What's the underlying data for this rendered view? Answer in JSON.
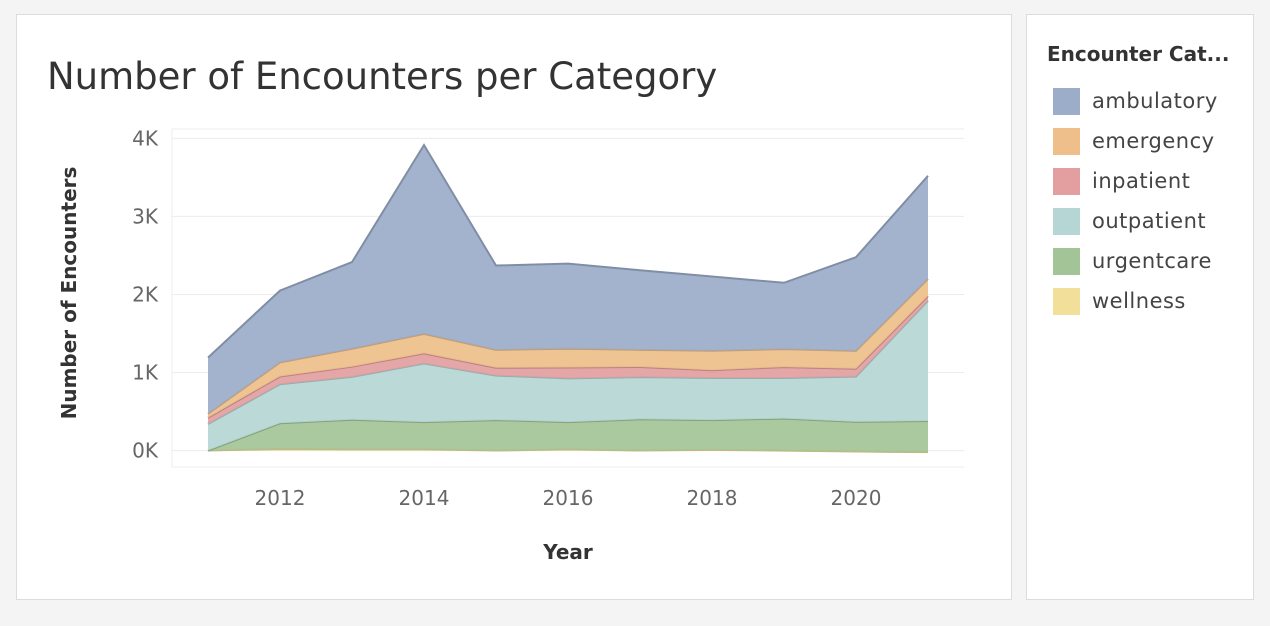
{
  "chart_data": {
    "type": "area",
    "title": "Number of Encounters per Category",
    "xlabel": "Year",
    "ylabel": "Number of Encounters",
    "x": [
      2011,
      2012,
      2013,
      2014,
      2015,
      2016,
      2017,
      2018,
      2019,
      2020,
      2021
    ],
    "x_ticks": [
      2012,
      2014,
      2016,
      2018,
      2020
    ],
    "x_tick_labels": [
      "2012",
      "2014",
      "2016",
      "2018",
      "2020"
    ],
    "xlim": [
      2010.5,
      2021.5
    ],
    "y_ticks": [
      0,
      1000,
      2000,
      3000,
      4000
    ],
    "y_tick_labels": [
      "0K",
      "1K",
      "2K",
      "3K",
      "4K"
    ],
    "ylim": [
      -210,
      4120
    ],
    "stacked": true,
    "grid": true,
    "legend_position": "right",
    "legend_title": "Encounter Cat...",
    "series": [
      {
        "name": "wellness",
        "color": "#f2df99",
        "values": [
          1,
          20,
          15,
          15,
          1,
          15,
          1,
          10,
          0,
          -12,
          -20
        ]
      },
      {
        "name": "urgentcare",
        "color": "#a3c496",
        "values": [
          0,
          330,
          380,
          350,
          390,
          350,
          400,
          380,
          410,
          380,
          400
        ]
      },
      {
        "name": "outpatient",
        "color": "#b5d6d4",
        "values": [
          340,
          500,
          550,
          750,
          570,
          560,
          540,
          540,
          520,
          580,
          1540
        ]
      },
      {
        "name": "inpatient",
        "color": "#e39ea0",
        "values": [
          80,
          100,
          130,
          130,
          100,
          140,
          130,
          100,
          140,
          100,
          60
        ]
      },
      {
        "name": "emergency",
        "color": "#eebf8a",
        "values": [
          50,
          180,
          230,
          250,
          230,
          240,
          220,
          250,
          230,
          230,
          220
        ]
      },
      {
        "name": "ambulatory",
        "color": "#9cadc9",
        "values": [
          720,
          920,
          1110,
          2420,
          1080,
          1090,
          1020,
          950,
          850,
          1200,
          1320
        ]
      }
    ]
  }
}
